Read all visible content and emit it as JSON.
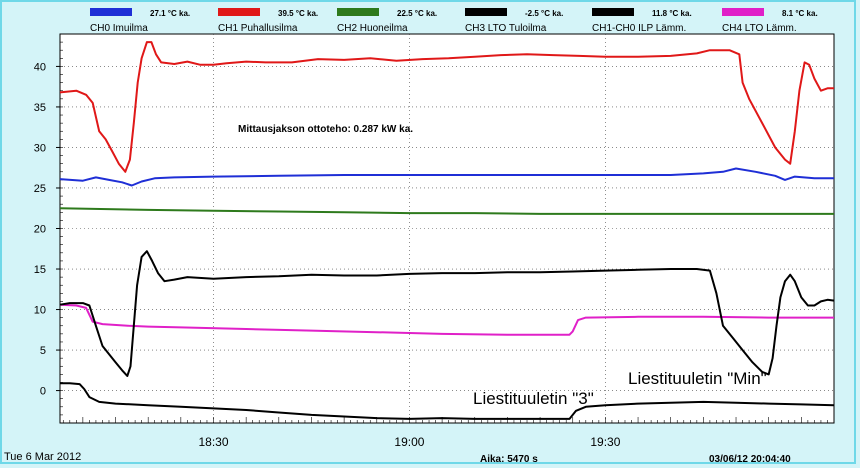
{
  "chart_data": {
    "type": "line",
    "legend": [
      {
        "value": "27.1 °C ka.",
        "name": "CH0 Imuilma",
        "color": "#1f2fd6"
      },
      {
        "value": "39.5 °C ka.",
        "name": "CH1 Puhallusilma",
        "color": "#e01818"
      },
      {
        "value": "22.5 °C ka.",
        "name": "CH2 Huoneilma",
        "color": "#2e7a1c"
      },
      {
        "value": "-2.5 °C ka.",
        "name": "CH3 LTO Tuloilma",
        "color": "#000000"
      },
      {
        "value": "11.8 °C ka.",
        "name": "CH1-CH0 ILP Lämm.",
        "color": "#000000"
      },
      {
        "value": "8.1 °C ka.",
        "name": "CH4 LTO Lämm.",
        "color": "#e020c8"
      }
    ],
    "x_unit": "minutes",
    "x_range": [
      18000,
      19100
    ],
    "x_ticks": [
      {
        "x": 18000,
        "label": ""
      },
      {
        "x": 18300,
        "label": ""
      },
      {
        "x": 18600,
        "label": ""
      }
    ],
    "x_tick_labels": [
      "18:30",
      "19:00",
      "19:30"
    ],
    "x_tick_minutes": [
      1110,
      1140,
      1170
    ],
    "x_start_minutes": 1086.5,
    "x_end_minutes": 1205,
    "ylim": [
      -4,
      44
    ],
    "y_ticks": [
      0,
      5,
      10,
      15,
      20,
      25,
      30,
      35,
      40
    ],
    "annotations": {
      "power": "Mittausjakson ottoteho: 0.287 kW ka.",
      "label3": "Liestituuletin \"3\"",
      "labelMin": "Liestituuletin \"Min\""
    },
    "footer": {
      "date": "Tue 6 Mar 2012",
      "aika": "Aika: 5470 s",
      "timestamp": "03/06/12 20:04:40"
    },
    "series": [
      {
        "name": "CH1 Puhallusilma",
        "color": "#e01818",
        "points": [
          [
            1086.5,
            36.8
          ],
          [
            1089,
            37
          ],
          [
            1090.5,
            36.5
          ],
          [
            1091.5,
            35.5
          ],
          [
            1092.5,
            32
          ],
          [
            1093.5,
            31
          ],
          [
            1094.5,
            29.5
          ],
          [
            1095.5,
            28
          ],
          [
            1096.5,
            27
          ],
          [
            1097.2,
            28.5
          ],
          [
            1097.8,
            33
          ],
          [
            1098.4,
            38
          ],
          [
            1099,
            41
          ],
          [
            1099.8,
            43
          ],
          [
            1100.5,
            43
          ],
          [
            1101.2,
            41.5
          ],
          [
            1102,
            40.5
          ],
          [
            1104,
            40.3
          ],
          [
            1106,
            40.6
          ],
          [
            1108,
            40.2
          ],
          [
            1110,
            40.2
          ],
          [
            1112,
            40.4
          ],
          [
            1115,
            40.6
          ],
          [
            1118,
            40.5
          ],
          [
            1122,
            40.5
          ],
          [
            1126,
            40.9
          ],
          [
            1130,
            40.8
          ],
          [
            1134,
            41
          ],
          [
            1138,
            40.7
          ],
          [
            1142,
            40.9
          ],
          [
            1146,
            41
          ],
          [
            1150,
            41.2
          ],
          [
            1154,
            41.4
          ],
          [
            1158,
            41.5
          ],
          [
            1162,
            41.4
          ],
          [
            1166,
            41.3
          ],
          [
            1170,
            41.2
          ],
          [
            1175,
            41.2
          ],
          [
            1180,
            41.3
          ],
          [
            1184,
            41.6
          ],
          [
            1186,
            42
          ],
          [
            1189,
            42
          ],
          [
            1190.5,
            41.5
          ],
          [
            1191,
            38
          ],
          [
            1192,
            36
          ],
          [
            1194,
            33
          ],
          [
            1196,
            30
          ],
          [
            1197.5,
            28.5
          ],
          [
            1198.3,
            28
          ],
          [
            1199,
            32
          ],
          [
            1199.7,
            37
          ],
          [
            1200.5,
            40.5
          ],
          [
            1201.2,
            40.2
          ],
          [
            1202,
            38.5
          ],
          [
            1203,
            37
          ],
          [
            1204,
            37.3
          ],
          [
            1205,
            37.3
          ]
        ]
      },
      {
        "name": "CH0 Imuilma",
        "color": "#1f2fd6",
        "points": [
          [
            1086.5,
            26.1
          ],
          [
            1090,
            25.9
          ],
          [
            1092,
            26.3
          ],
          [
            1094,
            26
          ],
          [
            1096,
            25.7
          ],
          [
            1097.5,
            25.3
          ],
          [
            1099,
            25.8
          ],
          [
            1101,
            26.2
          ],
          [
            1104,
            26.3
          ],
          [
            1110,
            26.4
          ],
          [
            1120,
            26.5
          ],
          [
            1130,
            26.6
          ],
          [
            1140,
            26.6
          ],
          [
            1150,
            26.6
          ],
          [
            1160,
            26.6
          ],
          [
            1170,
            26.6
          ],
          [
            1180,
            26.6
          ],
          [
            1185,
            26.8
          ],
          [
            1188,
            27
          ],
          [
            1190,
            27.4
          ],
          [
            1193,
            27
          ],
          [
            1196,
            26.5
          ],
          [
            1197.5,
            26
          ],
          [
            1199,
            26.4
          ],
          [
            1202,
            26.2
          ],
          [
            1205,
            26.2
          ]
        ]
      },
      {
        "name": "CH2 Huoneilma",
        "color": "#2e7a1c",
        "points": [
          [
            1086.5,
            22.5
          ],
          [
            1100,
            22.3
          ],
          [
            1110,
            22.2
          ],
          [
            1120,
            22.1
          ],
          [
            1130,
            22
          ],
          [
            1140,
            21.9
          ],
          [
            1150,
            21.9
          ],
          [
            1160,
            21.8
          ],
          [
            1170,
            21.8
          ],
          [
            1180,
            21.8
          ],
          [
            1190,
            21.8
          ],
          [
            1205,
            21.8
          ]
        ]
      },
      {
        "name": "CH4 LTO Lämm.",
        "color": "#e020c8",
        "points": [
          [
            1086.5,
            10.6
          ],
          [
            1089,
            10.5
          ],
          [
            1090.5,
            10.2
          ],
          [
            1091.5,
            8.5
          ],
          [
            1093,
            8.2
          ],
          [
            1097,
            8
          ],
          [
            1100,
            7.9
          ],
          [
            1105,
            7.8
          ],
          [
            1115,
            7.6
          ],
          [
            1125,
            7.4
          ],
          [
            1135,
            7.2
          ],
          [
            1145,
            7
          ],
          [
            1155,
            6.9
          ],
          [
            1164.5,
            6.9
          ],
          [
            1165,
            7.3
          ],
          [
            1165.8,
            8.7
          ],
          [
            1167,
            9
          ],
          [
            1175,
            9.1
          ],
          [
            1185,
            9.1
          ],
          [
            1195,
            9
          ],
          [
            1205,
            9
          ]
        ]
      },
      {
        "name": "CH1-CH0 ILP Lämm.",
        "color": "#000000",
        "points": [
          [
            1086.5,
            10.6
          ],
          [
            1088,
            10.8
          ],
          [
            1090,
            10.8
          ],
          [
            1091,
            10.5
          ],
          [
            1092,
            8
          ],
          [
            1093,
            5.5
          ],
          [
            1094,
            4.5
          ],
          [
            1095,
            3.5
          ],
          [
            1096,
            2.5
          ],
          [
            1096.8,
            1.8
          ],
          [
            1097.3,
            3
          ],
          [
            1097.8,
            8
          ],
          [
            1098.3,
            13
          ],
          [
            1099,
            16.5
          ],
          [
            1099.8,
            17.2
          ],
          [
            1100.6,
            16
          ],
          [
            1101.5,
            14.5
          ],
          [
            1102.5,
            13.5
          ],
          [
            1104,
            13.7
          ],
          [
            1106,
            14
          ],
          [
            1110,
            13.8
          ],
          [
            1115,
            14
          ],
          [
            1120,
            14.1
          ],
          [
            1125,
            14.3
          ],
          [
            1130,
            14.2
          ],
          [
            1135,
            14.2
          ],
          [
            1140,
            14.4
          ],
          [
            1145,
            14.5
          ],
          [
            1150,
            14.5
          ],
          [
            1155,
            14.6
          ],
          [
            1160,
            14.6
          ],
          [
            1165,
            14.7
          ],
          [
            1170,
            14.8
          ],
          [
            1175,
            14.9
          ],
          [
            1180,
            15
          ],
          [
            1184,
            15
          ],
          [
            1186,
            14.8
          ],
          [
            1187,
            12
          ],
          [
            1188,
            8
          ],
          [
            1189.5,
            6.5
          ],
          [
            1191,
            5
          ],
          [
            1192.5,
            3.5
          ],
          [
            1194,
            2.3
          ],
          [
            1195,
            2
          ],
          [
            1195.6,
            4
          ],
          [
            1196.2,
            8
          ],
          [
            1196.8,
            11.5
          ],
          [
            1197.5,
            13.5
          ],
          [
            1198.3,
            14.3
          ],
          [
            1199,
            13.5
          ],
          [
            1200,
            11.5
          ],
          [
            1201,
            10.5
          ],
          [
            1202,
            10.5
          ],
          [
            1203,
            11
          ],
          [
            1204,
            11.2
          ],
          [
            1205,
            11.1
          ]
        ]
      },
      {
        "name": "CH3 LTO Tuloilma",
        "color": "#000000",
        "points": [
          [
            1086.5,
            0.9
          ],
          [
            1088,
            0.9
          ],
          [
            1089.5,
            0.8
          ],
          [
            1090.2,
            0.2
          ],
          [
            1091,
            -0.8
          ],
          [
            1092.5,
            -1.4
          ],
          [
            1095,
            -1.6
          ],
          [
            1100,
            -1.8
          ],
          [
            1105,
            -2
          ],
          [
            1110,
            -2.2
          ],
          [
            1115,
            -2.4
          ],
          [
            1120,
            -2.7
          ],
          [
            1125,
            -3
          ],
          [
            1130,
            -3.2
          ],
          [
            1135,
            -3.4
          ],
          [
            1140,
            -3.5
          ],
          [
            1145,
            -3.4
          ],
          [
            1150,
            -3.5
          ],
          [
            1155,
            -3.5
          ],
          [
            1160,
            -3.5
          ],
          [
            1164.5,
            -3.5
          ],
          [
            1165.5,
            -2.5
          ],
          [
            1167,
            -2
          ],
          [
            1170,
            -1.8
          ],
          [
            1175,
            -1.6
          ],
          [
            1180,
            -1.5
          ],
          [
            1185,
            -1.4
          ],
          [
            1190,
            -1.5
          ],
          [
            1195,
            -1.6
          ],
          [
            1200,
            -1.7
          ],
          [
            1205,
            -1.8
          ]
        ]
      }
    ]
  }
}
